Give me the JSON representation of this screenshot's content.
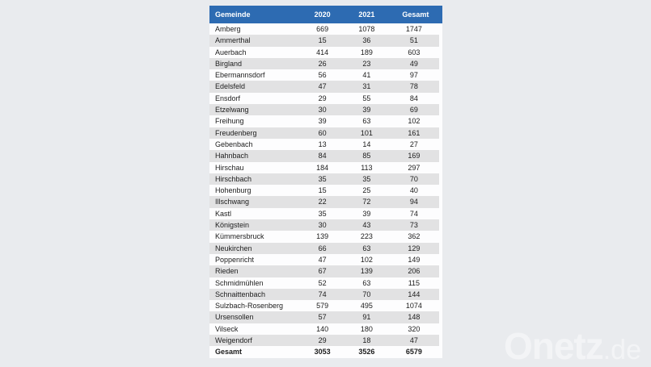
{
  "chart_data": {
    "type": "table",
    "columns": [
      "Gemeinde",
      "2020",
      "2021",
      "Gesamt"
    ],
    "rows": [
      [
        "Amberg",
        669,
        1078,
        1747
      ],
      [
        "Ammerthal",
        15,
        36,
        51
      ],
      [
        "Auerbach",
        414,
        189,
        603
      ],
      [
        "Birgland",
        26,
        23,
        49
      ],
      [
        "Ebermannsdorf",
        56,
        41,
        97
      ],
      [
        "Edelsfeld",
        47,
        31,
        78
      ],
      [
        "Ensdorf",
        29,
        55,
        84
      ],
      [
        "Etzelwang",
        30,
        39,
        69
      ],
      [
        "Freihung",
        39,
        63,
        102
      ],
      [
        "Freudenberg",
        60,
        101,
        161
      ],
      [
        "Gebenbach",
        13,
        14,
        27
      ],
      [
        "Hahnbach",
        84,
        85,
        169
      ],
      [
        "Hirschau",
        184,
        113,
        297
      ],
      [
        "Hirschbach",
        35,
        35,
        70
      ],
      [
        "Hohenburg",
        15,
        25,
        40
      ],
      [
        "Illschwang",
        22,
        72,
        94
      ],
      [
        "Kastl",
        35,
        39,
        74
      ],
      [
        "Königstein",
        30,
        43,
        73
      ],
      [
        "Kümmersbruck",
        139,
        223,
        362
      ],
      [
        "Neukirchen",
        66,
        63,
        129
      ],
      [
        "Poppenricht",
        47,
        102,
        149
      ],
      [
        "Rieden",
        67,
        139,
        206
      ],
      [
        "Schmidmühlen",
        52,
        63,
        115
      ],
      [
        "Schnaittenbach",
        74,
        70,
        144
      ],
      [
        "Sulzbach-Rosenberg",
        579,
        495,
        1074
      ],
      [
        "Ursensollen",
        57,
        91,
        148
      ],
      [
        "Vilseck",
        140,
        180,
        320
      ],
      [
        "Weigendorf",
        29,
        18,
        47
      ]
    ],
    "footer": [
      "Gesamt",
      3053,
      3526,
      6579
    ],
    "legend_position": "none",
    "grid": "row-stripes"
  },
  "watermark": {
    "brand": "Onetz",
    "suffix": ".de"
  },
  "colors": {
    "page_bg": "#e9ebee",
    "header_bg": "#2d6bb2",
    "row_white": "#fdfdfe",
    "row_gray": "#e2e2e3",
    "text_color": "#1c1c1c",
    "watermark_color": "#f3f4f6"
  }
}
